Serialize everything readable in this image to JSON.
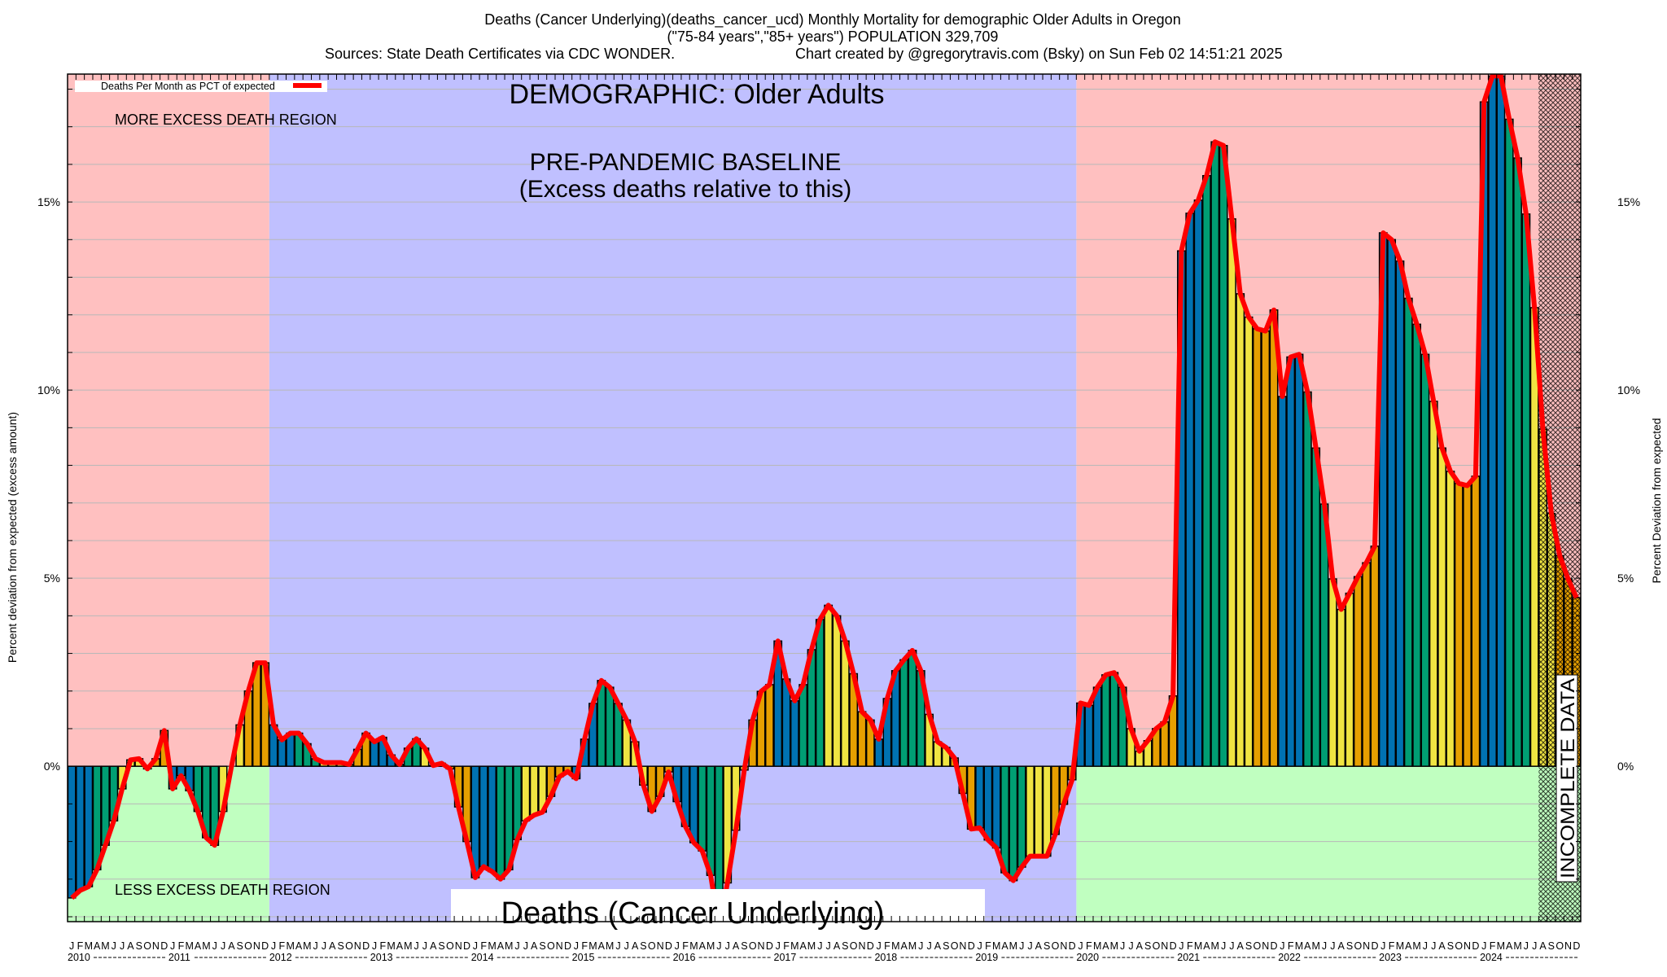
{
  "header": {
    "title_line1": "Deaths (Cancer Underlying)(deaths_cancer_ucd) Monthly Mortality for demographic Older Adults in Oregon",
    "title_line2": "(\"75-84 years\",\"85+ years\") POPULATION 329,709",
    "sources": "Sources: State Death Certificates via CDC WONDER.",
    "credit": "Chart created by @gregorytravis.com (Bsky) on Sun Feb 02 14:51:21 2025"
  },
  "annotations": {
    "demographic": "DEMOGRAPHIC: Older Adults",
    "baseline_line1": "PRE-PANDEMIC BASELINE",
    "baseline_line2": "(Excess deaths relative to this)",
    "more_region": "MORE EXCESS DEATH REGION",
    "less_region": "LESS EXCESS DEATH REGION",
    "cause_label": "Deaths (Cancer Underlying)",
    "incomplete": "INCOMPLETE DATA"
  },
  "colors": {
    "excess_region": "#FFC0C0",
    "deficit_region": "#C0FFC0",
    "baseline_region": "#C0C0FF",
    "line": "#FF0000",
    "q1": "#0072B2",
    "q2": "#009E73",
    "q3": "#F0E442",
    "q4": "#E69F00"
  },
  "chart_data": {
    "type": "bar",
    "title": "Deaths (Cancer Underlying)(deaths_cancer_ucd) Monthly Mortality for demographic Older Adults in Oregon",
    "ylabel": "Percent deviation from expected (excess amount)",
    "ylabel_right": "Percent Deviation from expected",
    "legend": {
      "label": "Deaths Per Month as PCT of expected",
      "placement": "top-left"
    },
    "ylim": [
      -4.13,
      18.4
    ],
    "yticks": [
      0,
      5,
      10,
      15
    ],
    "ytick_labels": [
      "0%",
      "5%",
      "10%",
      "15%"
    ],
    "grid": true,
    "month_letters": [
      "J",
      "F",
      "M",
      "A",
      "M",
      "J",
      "J",
      "A",
      "S",
      "O",
      "N",
      "D"
    ],
    "years": [
      "2010",
      "2011",
      "2012",
      "2013",
      "2014",
      "2015",
      "2016",
      "2017",
      "2018",
      "2019",
      "2020",
      "2021",
      "2022",
      "2023",
      "2024"
    ],
    "baseline_years": [
      "2012",
      "2019"
    ],
    "incomplete_from": "2024-08",
    "values": [
      -3.5,
      -3.3,
      -3.2,
      -2.75,
      -2.1,
      -1.45,
      -0.6,
      0.17,
      0.2,
      -0.07,
      0.2,
      0.95,
      -0.6,
      -0.25,
      -0.65,
      -1.2,
      -1.9,
      -2.1,
      -1.2,
      0,
      1.1,
      2.0,
      2.75,
      2.75,
      1.1,
      0.7,
      0.88,
      0.88,
      0.6,
      0.2,
      0.1,
      0.1,
      0.1,
      0.05,
      0.45,
      0.88,
      0.65,
      0.77,
      0.3,
      0.05,
      0.48,
      0.73,
      0.48,
      0.02,
      0.08,
      -0.07,
      -1.08,
      -2.0,
      -2.96,
      -2.67,
      -2.8,
      -3.0,
      -2.75,
      -1.95,
      -1.45,
      -1.3,
      -1.22,
      -0.8,
      -0.28,
      -0.14,
      -0.33,
      0.72,
      1.67,
      2.28,
      2.1,
      1.67,
      1.23,
      0.65,
      -0.5,
      -1.2,
      -0.8,
      -0.15,
      -0.94,
      -1.6,
      -2.03,
      -2.25,
      -2.9,
      -4.3,
      -3.1,
      -1.7,
      -0.1,
      1.23,
      1.99,
      2.17,
      3.33,
      2.32,
      1.74,
      2.17,
      3.1,
      3.9,
      4.28,
      4.0,
      3.33,
      2.46,
      1.45,
      1.23,
      0.72,
      1.8,
      2.54,
      2.83,
      3.08,
      2.54,
      1.38,
      0.65,
      0.5,
      0.22,
      -0.72,
      -1.67,
      -1.64,
      -1.96,
      -2.17,
      -2.83,
      -3.04,
      -2.68,
      -2.39,
      -2.39,
      -2.39,
      -1.81,
      -1.01,
      -0.36,
      1.68,
      1.62,
      2.1,
      2.43,
      2.49,
      2.1,
      1.0,
      0.4,
      0.68,
      1.0,
      1.18,
      1.87,
      13.7,
      14.7,
      15.05,
      15.7,
      16.6,
      16.5,
      14.55,
      12.56,
      11.94,
      11.63,
      11.57,
      12.13,
      9.83,
      10.88,
      10.95,
      9.95,
      8.46,
      6.97,
      4.98,
      4.17,
      4.6,
      5.04,
      5.41,
      5.85,
      14.18,
      14.0,
      13.43,
      12.44,
      11.75,
      10.95,
      9.7,
      8.46,
      7.84,
      7.52,
      7.46,
      7.71,
      17.66,
      18.35,
      18.35,
      17.2,
      16.17,
      14.68,
      12.19,
      8.96,
      6.72,
      5.6,
      4.98,
      4.48
    ]
  }
}
